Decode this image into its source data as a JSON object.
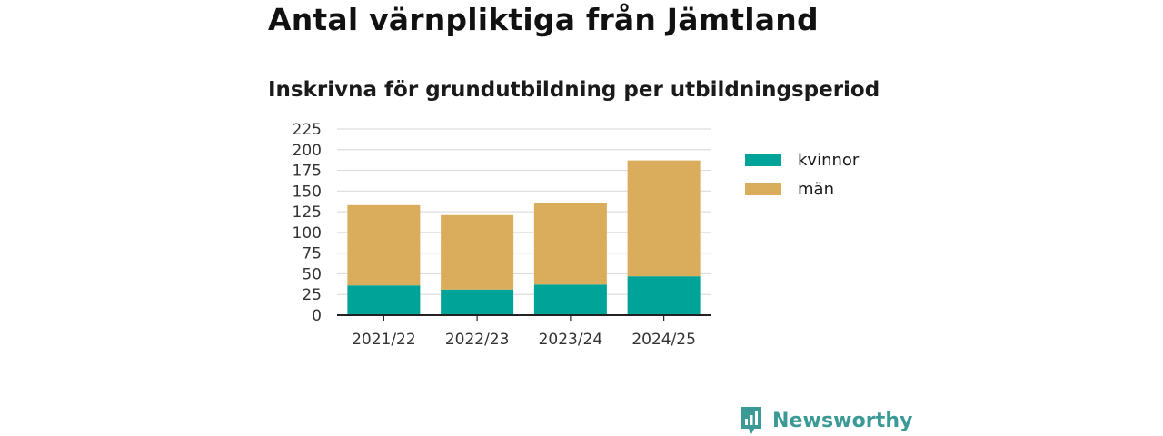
{
  "title": "Antal värnpliktiga från Jämtland",
  "subtitle": "Inskrivna för grundutbildning per utbildningsperiod",
  "brand": "Newsworthy",
  "colors": {
    "kvinnor": "#00a398",
    "man": "#d9ad5b",
    "grid": "#dddddd",
    "axis": "#222222",
    "brand": "#3b9a96"
  },
  "legend": {
    "items": [
      {
        "label": "kvinnor",
        "color": "#00a398"
      },
      {
        "label": "män",
        "color": "#d9ad5b"
      }
    ],
    "placement": "right"
  },
  "chart_data": {
    "type": "bar",
    "stacked": true,
    "categories": [
      "2021/22",
      "2022/23",
      "2023/24",
      "2024/25"
    ],
    "series": [
      {
        "name": "kvinnor",
        "values": [
          36,
          31,
          37,
          47
        ]
      },
      {
        "name": "män",
        "values": [
          97,
          90,
          99,
          140
        ]
      }
    ],
    "ylim": [
      0,
      225
    ],
    "yticks": [
      0,
      25,
      50,
      75,
      100,
      125,
      150,
      175,
      200,
      225
    ],
    "grid": true
  }
}
